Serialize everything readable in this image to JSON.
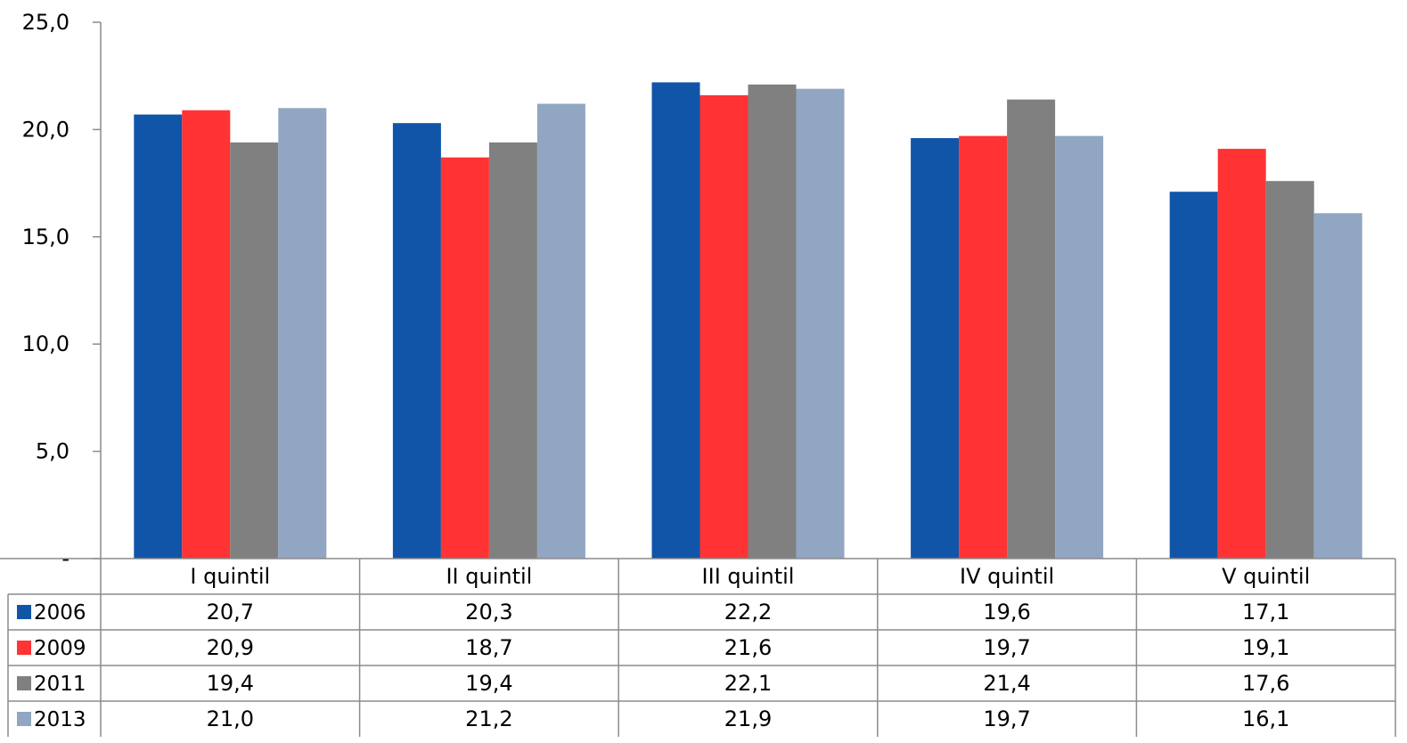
{
  "chart_data": {
    "type": "bar",
    "categories": [
      "I quintil",
      "II quintil",
      "III quintil",
      "IV quintil",
      "V quintil"
    ],
    "series": [
      {
        "name": "2006",
        "color": "#1155A8",
        "values": [
          20.7,
          20.3,
          22.2,
          19.6,
          17.1
        ],
        "labels": [
          "20,7",
          "20,3",
          "22,2",
          "19,6",
          "17,1"
        ]
      },
      {
        "name": "2009",
        "color": "#FF3333",
        "values": [
          20.9,
          18.7,
          21.6,
          19.7,
          19.1
        ],
        "labels": [
          "20,9",
          "18,7",
          "21,6",
          "19,7",
          "19,1"
        ]
      },
      {
        "name": "2011",
        "color": "#808080",
        "values": [
          19.4,
          19.4,
          22.1,
          21.4,
          17.6
        ],
        "labels": [
          "19,4",
          "19,4",
          "22,1",
          "21,4",
          "17,6"
        ]
      },
      {
        "name": "2013",
        "color": "#91A6C2",
        "values": [
          21.0,
          21.2,
          21.9,
          19.7,
          16.1
        ],
        "labels": [
          "21,0",
          "21,2",
          "21,9",
          "19,7",
          "16,1"
        ]
      }
    ],
    "yticks": [
      0,
      5,
      10,
      15,
      20,
      25
    ],
    "ytick_labels": [
      "-",
      "5,0",
      "10,0",
      "15,0",
      "20,0",
      "25,0"
    ],
    "ylim": [
      0,
      25
    ],
    "grid": false,
    "legend": "data-table",
    "title": "",
    "xlabel": "",
    "ylabel": ""
  }
}
